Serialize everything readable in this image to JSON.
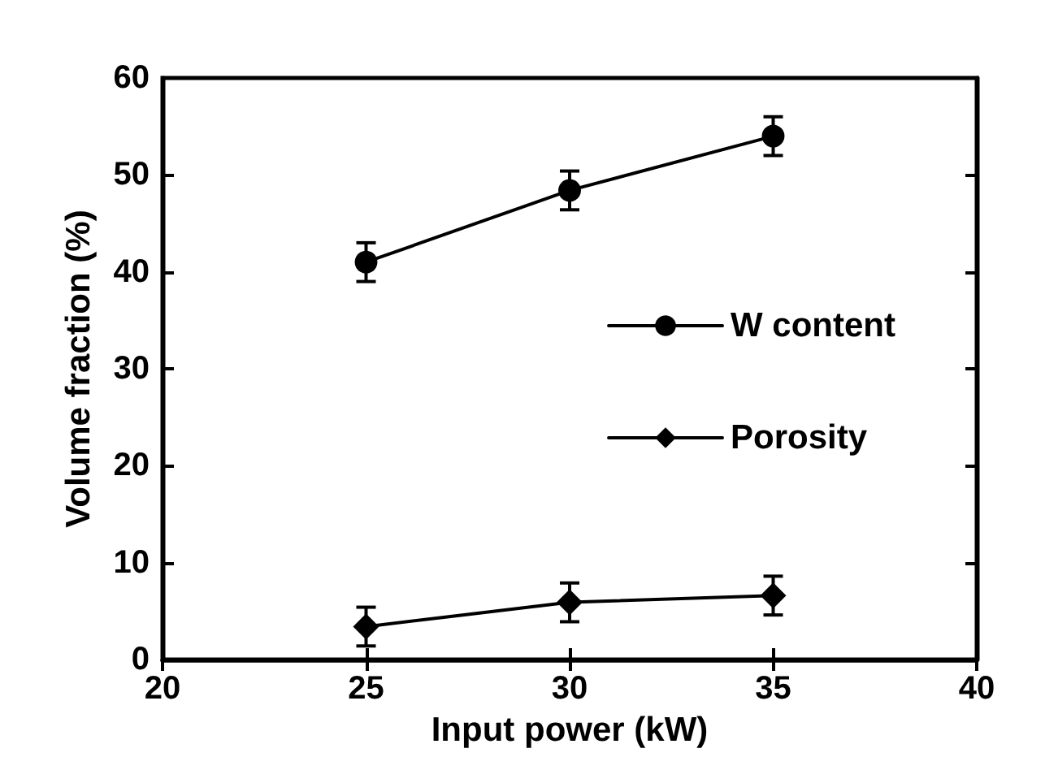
{
  "chart_data": {
    "type": "line",
    "xlabel": "Input power (kW)",
    "ylabel": "Volume fraction (%)",
    "x": [
      25,
      30,
      35
    ],
    "series": [
      {
        "name": "W content",
        "color": "#000000",
        "marker": "circle",
        "values": [
          41,
          48.4,
          54
        ],
        "errors": [
          2,
          2,
          2
        ]
      },
      {
        "name": "Porosity",
        "color": "#000000",
        "marker": "diamond",
        "values": [
          3.4,
          5.9,
          6.6
        ],
        "errors": [
          2,
          2,
          2
        ]
      }
    ],
    "xlim": [
      20,
      40
    ],
    "xticks": [
      20,
      25,
      30,
      35,
      40
    ],
    "ylim": [
      0,
      60
    ],
    "yticks": [
      0,
      10,
      20,
      30,
      40,
      50,
      60
    ],
    "grid": false,
    "legend": "right",
    "line_style": "solid"
  }
}
